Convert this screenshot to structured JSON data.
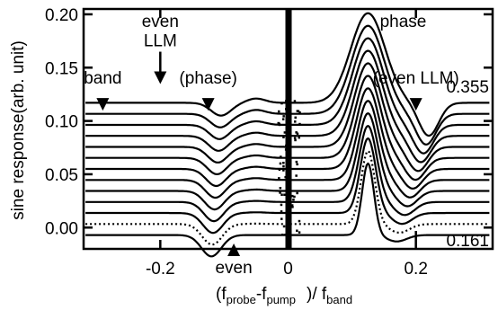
{
  "chart_data": {
    "type": "line",
    "title": "",
    "xlabel": {
      "open": "(f",
      "probe_sub": "probe",
      "dash": "-f",
      "pump_sub": "pump",
      "mid": ")/ f",
      "band_sub": "band"
    },
    "ylabel": "sine response(arb. unit)",
    "xlim": [
      -0.32,
      0.32
    ],
    "ylim": [
      -0.02,
      0.205
    ],
    "x_ticks": [
      -0.2,
      0,
      0.2
    ],
    "x_tick_labels": [
      "-0.2",
      "0",
      "0.2"
    ],
    "y_ticks": [
      0,
      0.05,
      0.1,
      0.15,
      0.2
    ],
    "y_tick_labels": [
      "0.00",
      "0.05",
      "0.10",
      "0.15",
      "0.20"
    ],
    "grid": false,
    "legend": "none",
    "trace_count": 13,
    "baseline_top": 0.117,
    "baseline_bottom": -0.007,
    "central_feature_x": 0.0,
    "dip_x": -0.12,
    "peak_x": 0.125,
    "peak_top_y": 0.201,
    "annotations": [
      {
        "text": "band",
        "x": -0.29,
        "y": 0.135,
        "arrow": "down"
      },
      {
        "text": "even",
        "x": -0.2,
        "y": 0.188
      },
      {
        "text": "LLM",
        "x": -0.2,
        "y": 0.17,
        "arrow": "down"
      },
      {
        "text": "(phase)",
        "x": -0.125,
        "y": 0.135,
        "arrow": "down"
      },
      {
        "text": "phase",
        "x": 0.18,
        "y": 0.188
      },
      {
        "text": "(even LLM)",
        "x": 0.2,
        "y": 0.135,
        "arrow": "down"
      },
      {
        "text": "even",
        "x": -0.085,
        "y": -0.05,
        "arrow": "up"
      }
    ],
    "trace_labels": [
      {
        "text": "0.355",
        "position": "top-right"
      },
      {
        "text": "0.161",
        "position": "bottom-right"
      }
    ]
  }
}
